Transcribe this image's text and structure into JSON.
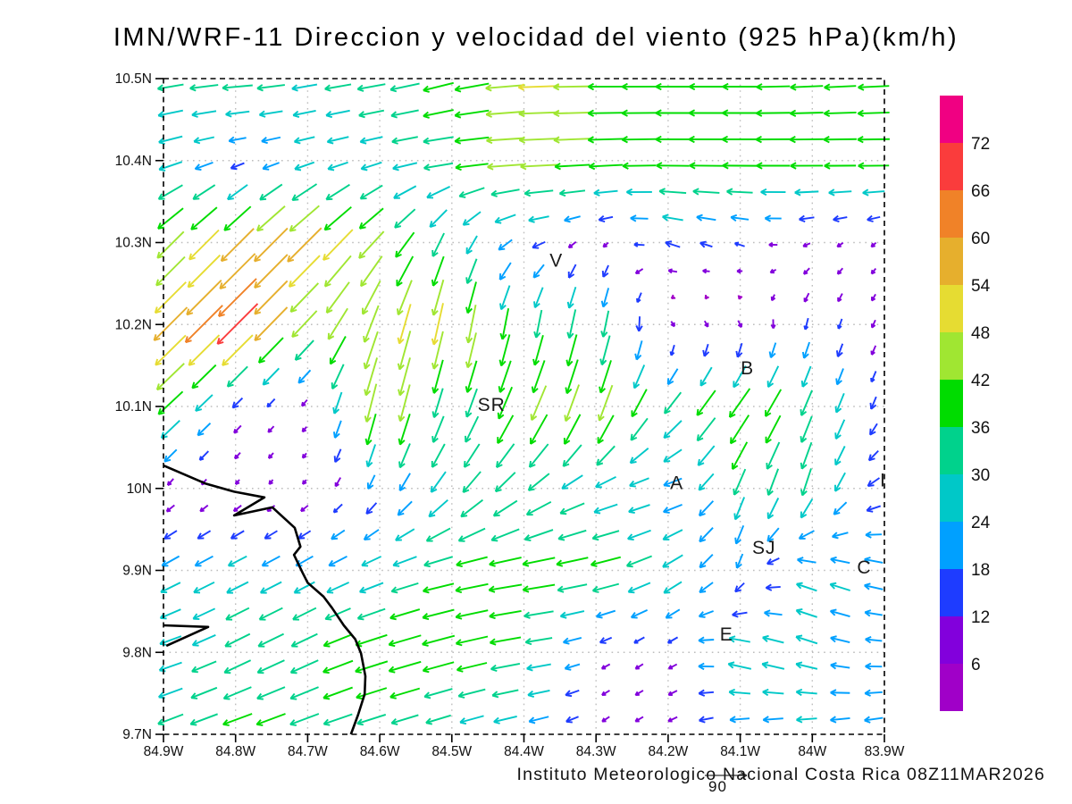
{
  "title": "IMN/WRF-11 Direccion y velocidad del viento (925 hPa)(km/h)",
  "footer": {
    "text": "Instituto Meteorologico Nacional Costa Rica 08Z11MAR2026",
    "reference_value": "90"
  },
  "chart_data": {
    "type": "vector_field",
    "title": "IMN/WRF-11 Direccion y velocidad del viento (925 hPa)(km/h)",
    "units": "km/h",
    "level": "925 hPa",
    "model": "IMN/WRF-11",
    "valid_time": "08Z11MAR2026",
    "lon_range": [
      -84.9,
      -83.9
    ],
    "lat_range": [
      9.7,
      10.5
    ],
    "x_ticks": [
      "84.9W",
      "84.8W",
      "84.7W",
      "84.6W",
      "84.5W",
      "84.4W",
      "84.3W",
      "84.2W",
      "84.1W",
      "84W",
      "83.9W"
    ],
    "y_ticks": [
      "10.5N",
      "10.4N",
      "10.3N",
      "10.2N",
      "10.1N",
      "10N",
      "9.9N",
      "9.8N",
      "9.7N"
    ],
    "grid": "dotted",
    "reference_vector": 90,
    "colorbar": {
      "levels": [
        6,
        12,
        18,
        24,
        30,
        36,
        42,
        48,
        54,
        60,
        66,
        72
      ],
      "colors": [
        "#A000C8",
        "#8200DC",
        "#1E3CFF",
        "#00A0FF",
        "#00C8C8",
        "#00D28C",
        "#00DC00",
        "#A0E632",
        "#E6DC32",
        "#E6AF2D",
        "#F08228",
        "#FA3C3C",
        "#F00082"
      ]
    },
    "stations": [
      {
        "label": "V",
        "lon": -84.355,
        "lat": 10.278
      },
      {
        "label": "B",
        "lon": -84.09,
        "lat": 10.147
      },
      {
        "label": "SR",
        "lon": -84.445,
        "lat": 10.102
      },
      {
        "label": "A",
        "lon": -84.188,
        "lat": 10.007
      },
      {
        "label": "SJ",
        "lon": -84.067,
        "lat": 9.928
      },
      {
        "label": "C",
        "lon": -83.928,
        "lat": 9.904
      },
      {
        "label": "E",
        "lon": -84.119,
        "lat": 9.822
      },
      {
        "label": "I",
        "lon": -83.902,
        "lat": 10.01
      }
    ],
    "coastline_lonlat": [
      [
        -84.9,
        10.028
      ],
      [
        -84.842,
        10.006
      ],
      [
        -84.802,
        9.996
      ],
      [
        -84.76,
        9.989
      ],
      [
        -84.802,
        9.967
      ],
      [
        -84.749,
        9.977
      ],
      [
        -84.718,
        9.952
      ],
      [
        -84.71,
        9.929
      ],
      [
        -84.719,
        9.919
      ],
      [
        -84.707,
        9.897
      ],
      [
        -84.7,
        9.885
      ],
      [
        -84.678,
        9.868
      ],
      [
        -84.666,
        9.854
      ],
      [
        -84.65,
        9.833
      ],
      [
        -84.634,
        9.816
      ],
      [
        -84.626,
        9.799
      ],
      [
        -84.62,
        9.771
      ],
      [
        -84.621,
        9.749
      ],
      [
        -84.63,
        9.724
      ],
      [
        -84.64,
        9.7
      ]
    ],
    "cape_lonlat": [
      [
        -84.9,
        9.833
      ],
      [
        -84.838,
        9.831
      ],
      [
        -84.896,
        9.808
      ]
    ],
    "wind_grid": {
      "lons": [
        -84.9,
        -84.8,
        -84.7,
        -84.6,
        -84.5,
        -84.4,
        -84.3,
        -84.2,
        -84.1,
        -84.0,
        -83.9
      ],
      "lats": [
        10.5,
        10.4,
        10.3,
        10.2,
        10.1,
        10.0,
        9.9,
        9.8,
        9.7
      ],
      "u": [
        [
          -30,
          -38,
          -30,
          -34,
          -36,
          -50,
          -42,
          -40,
          -40,
          -38,
          -36
        ],
        [
          -28,
          -14,
          -22,
          -24,
          -38,
          -46,
          -42,
          -40,
          -42,
          -40,
          -38
        ],
        [
          -30,
          -38,
          -40,
          -28,
          -10,
          -18,
          -4,
          -18,
          -12,
          -8,
          -5
        ],
        [
          -38,
          -48,
          -28,
          -15,
          -10,
          -6,
          -8,
          4,
          4,
          -4,
          -4
        ],
        [
          -30,
          -10,
          -5,
          -12,
          -10,
          -18,
          -15,
          -20,
          -25,
          -12,
          -5
        ],
        [
          -5,
          -4,
          -4,
          -8,
          -20,
          -25,
          -25,
          -22,
          -12,
          -10,
          -15
        ],
        [
          -22,
          -24,
          -22,
          -25,
          -38,
          -40,
          -38,
          -25,
          -6,
          -25,
          -22
        ],
        [
          -25,
          -30,
          -32,
          -40,
          -38,
          -35,
          -10,
          -8,
          -28,
          -25,
          -18
        ],
        [
          -30,
          -35,
          -34,
          -32,
          -26,
          -25,
          -8,
          -10,
          -22,
          -24,
          -22
        ]
      ],
      "v": [
        [
          -5,
          -3,
          -5,
          -6,
          -10,
          -2,
          0,
          0,
          0,
          -2,
          -2
        ],
        [
          -8,
          -4,
          -6,
          -6,
          -4,
          -2,
          -2,
          0,
          0,
          0,
          0
        ],
        [
          -30,
          -38,
          -40,
          -30,
          -26,
          -6,
          -6,
          6,
          4,
          -4,
          -5
        ],
        [
          -38,
          -48,
          -30,
          -45,
          -50,
          -32,
          -35,
          -6,
          -8,
          -14,
          -8
        ],
        [
          -28,
          -10,
          -6,
          -50,
          -30,
          -40,
          -45,
          -25,
          -35,
          -30,
          -12
        ],
        [
          -6,
          -5,
          -5,
          -15,
          -25,
          -20,
          -10,
          -5,
          -30,
          -32,
          -5
        ],
        [
          -12,
          -12,
          -12,
          -10,
          -8,
          -6,
          -8,
          -15,
          -15,
          10,
          5
        ],
        [
          -8,
          -15,
          -15,
          -12,
          -10,
          -5,
          -5,
          -6,
          8,
          8,
          0
        ],
        [
          -12,
          -12,
          -12,
          -10,
          -8,
          -6,
          -6,
          -5,
          -4,
          -4,
          -4
        ]
      ]
    }
  }
}
